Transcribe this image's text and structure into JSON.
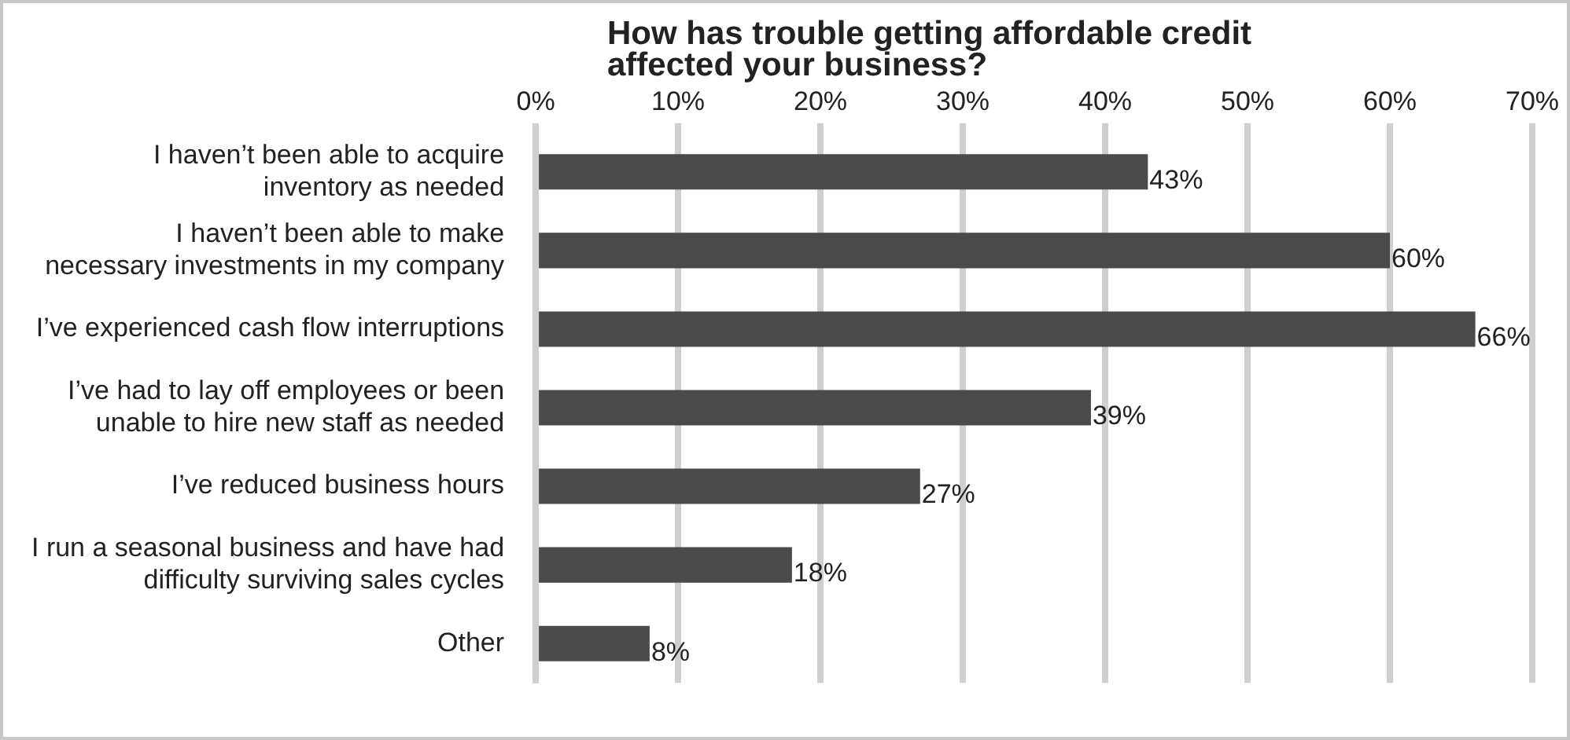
{
  "chart_data": {
    "type": "bar",
    "orientation": "horizontal",
    "title": "How has trouble getting affordable credit\naffected your business?",
    "categories": [
      "I haven’t been able to acquire\ninventory as needed",
      "I haven’t been able to make\nnecessary investments in my company",
      "I’ve experienced cash flow interruptions",
      "I’ve had to lay off employees or been\nunable to hire new staff as needed",
      "I’ve reduced business hours",
      "I run a seasonal business and have had\ndifficulty surviving sales cycles",
      "Other"
    ],
    "values": [
      43,
      60,
      66,
      39,
      27,
      18,
      8
    ],
    "value_labels": [
      "43%",
      "60%",
      "66%",
      "39%",
      "27%",
      "18%",
      "8%"
    ],
    "color": "#4a4a4a",
    "xlim": [
      0,
      70
    ],
    "xticks": [
      {
        "value": 0,
        "label": "0%"
      },
      {
        "value": 10,
        "label": "10%"
      },
      {
        "value": 20,
        "label": "20%"
      },
      {
        "value": 30,
        "label": "30%"
      },
      {
        "value": 40,
        "label": "40%"
      },
      {
        "value": 50,
        "label": "50%"
      },
      {
        "value": 60,
        "label": "60%"
      },
      {
        "value": 70,
        "label": "70%"
      }
    ],
    "grid": "x",
    "legend": false
  }
}
